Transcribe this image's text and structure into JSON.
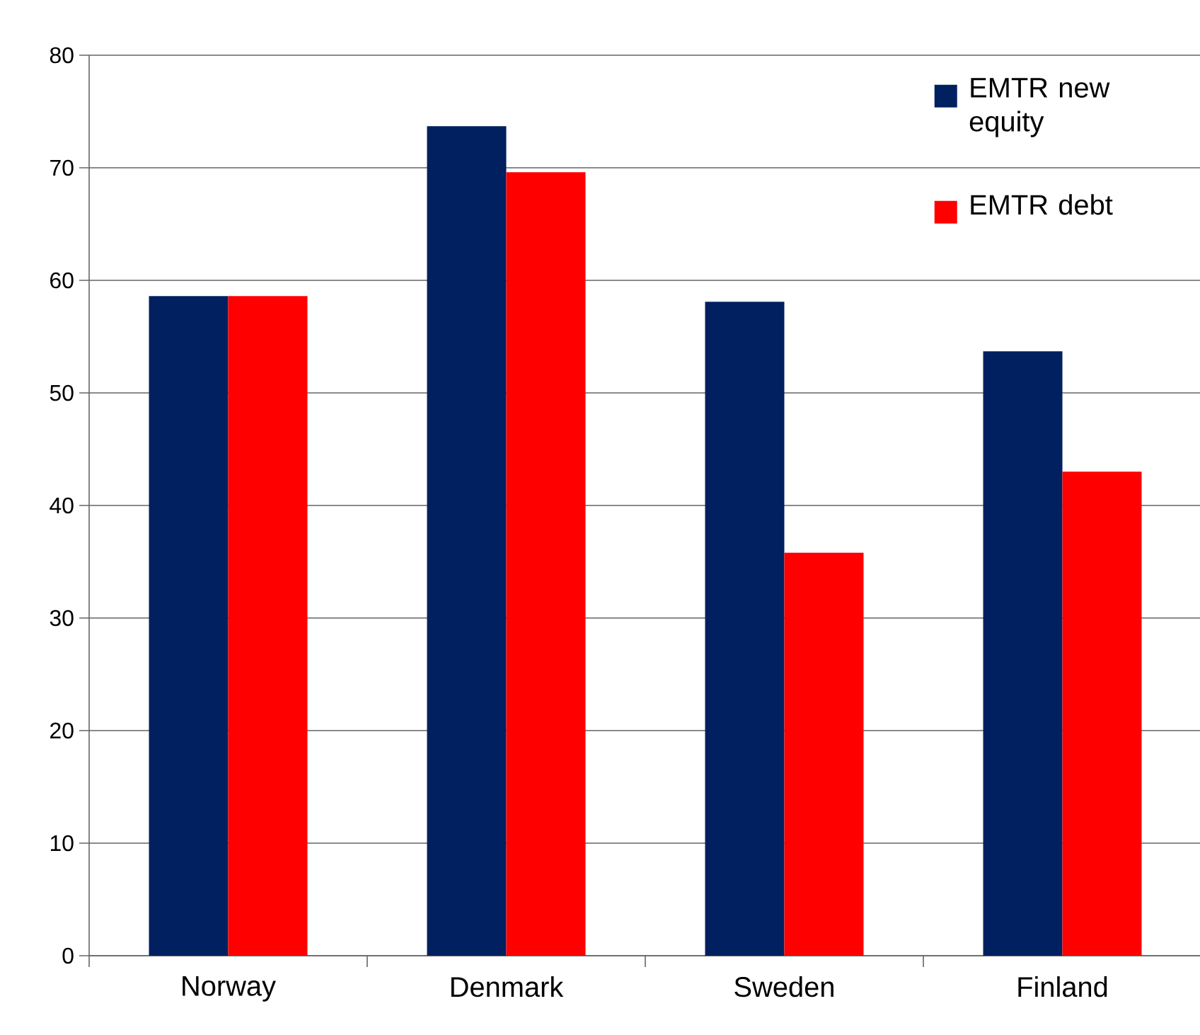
{
  "chart_data": {
    "type": "bar",
    "categories": [
      "Norway",
      "Denmark",
      "Sweden",
      "Finland"
    ],
    "series": [
      {
        "name": "EMTR new equity",
        "color": "#002060",
        "values": [
          58.6,
          73.7,
          58.1,
          53.7
        ]
      },
      {
        "name": "EMTR debt",
        "color": "#ff0000",
        "values": [
          58.6,
          69.6,
          35.8,
          43.0
        ]
      }
    ],
    "ylim": [
      0,
      80
    ],
    "yticks": [
      0,
      10,
      20,
      30,
      40,
      50,
      60,
      70,
      80
    ],
    "grid": "y",
    "legend": "top right"
  }
}
